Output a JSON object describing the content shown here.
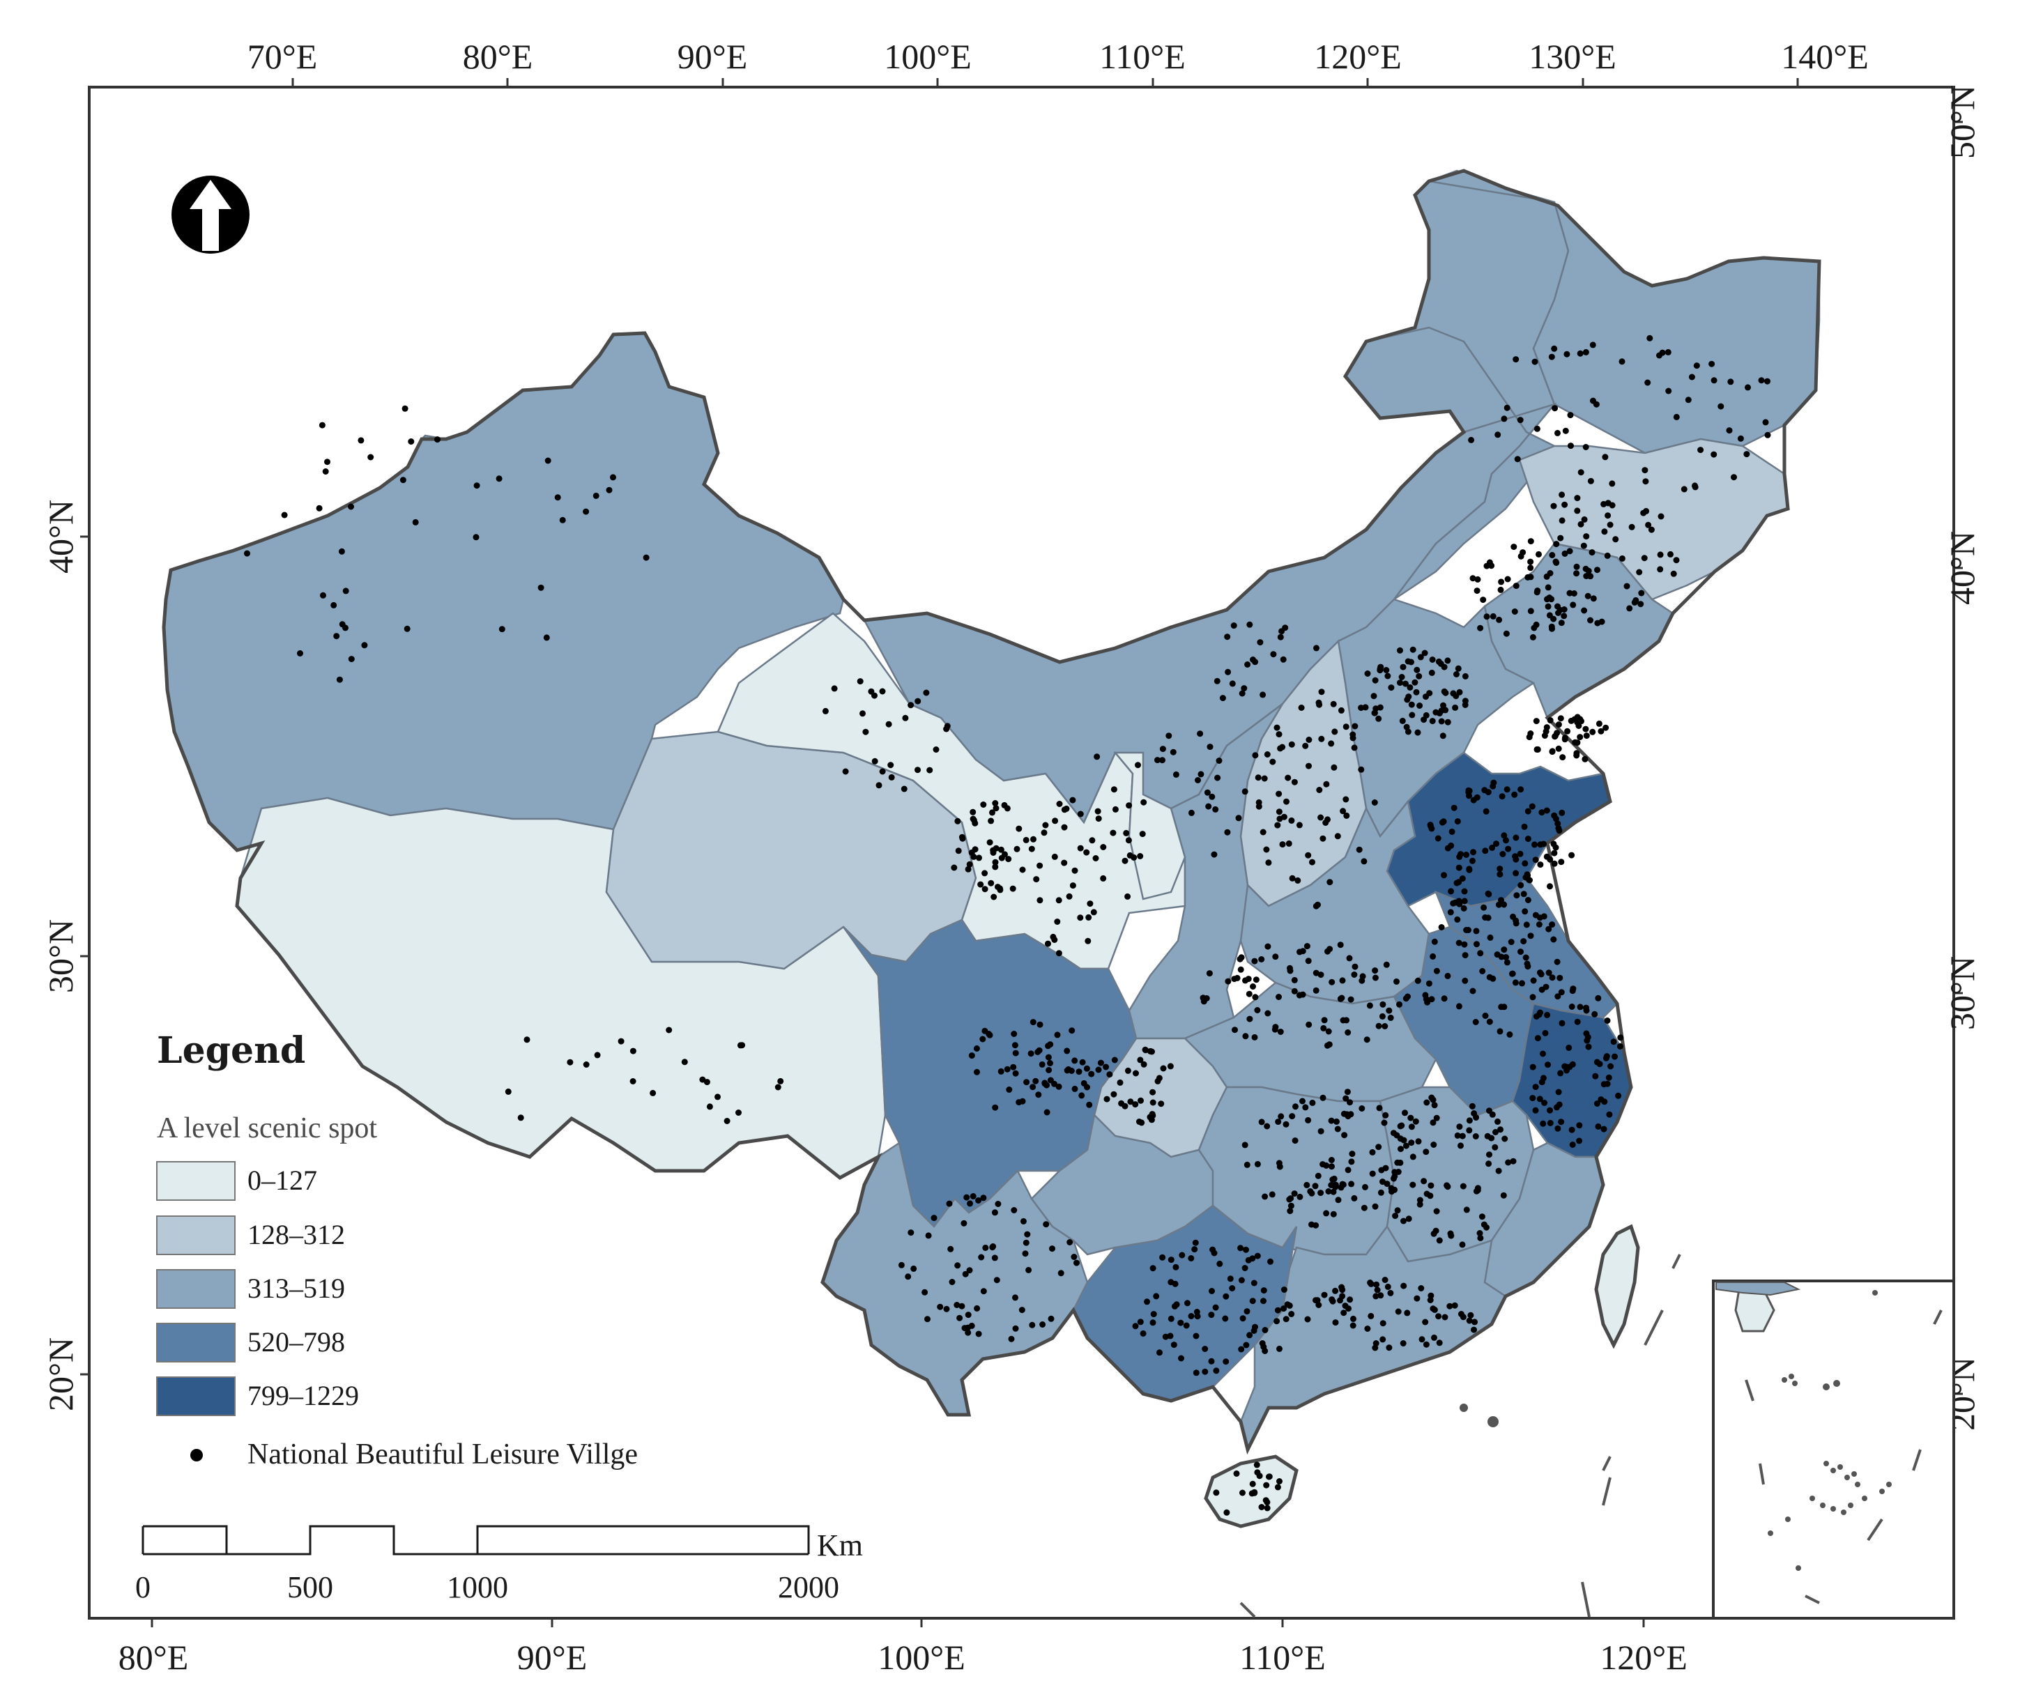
{
  "map": {
    "top_ticks": [
      "70°E",
      "80°E",
      "90°E",
      "100°E",
      "110°E",
      "120°E",
      "130°E",
      "140°E"
    ],
    "bottom_ticks": [
      "80°E",
      "90°E",
      "100°E",
      "110°E",
      "120°E"
    ],
    "left_ticks": [
      "40°N",
      "30°N",
      "20°N"
    ],
    "right_ticks": [
      "50°N",
      "40°N",
      "30°N",
      "20°N"
    ]
  },
  "legend": {
    "title": "Legend",
    "subtitle": "A level scenic spot",
    "classes": [
      {
        "label": "0–127",
        "color": "#e1ecef"
      },
      {
        "label": "128–312",
        "color": "#b7c9d6"
      },
      {
        "label": "313–519",
        "color": "#8aa6bf"
      },
      {
        "label": "520–798",
        "color": "#5a7fa6"
      },
      {
        "label": "799–1229",
        "color": "#2f5a8a"
      }
    ],
    "point_label": "National Beautiful Leisure Villge"
  },
  "scalebar": {
    "unit": "Km",
    "labels": [
      "0",
      "500",
      "1000",
      "2000"
    ]
  }
}
